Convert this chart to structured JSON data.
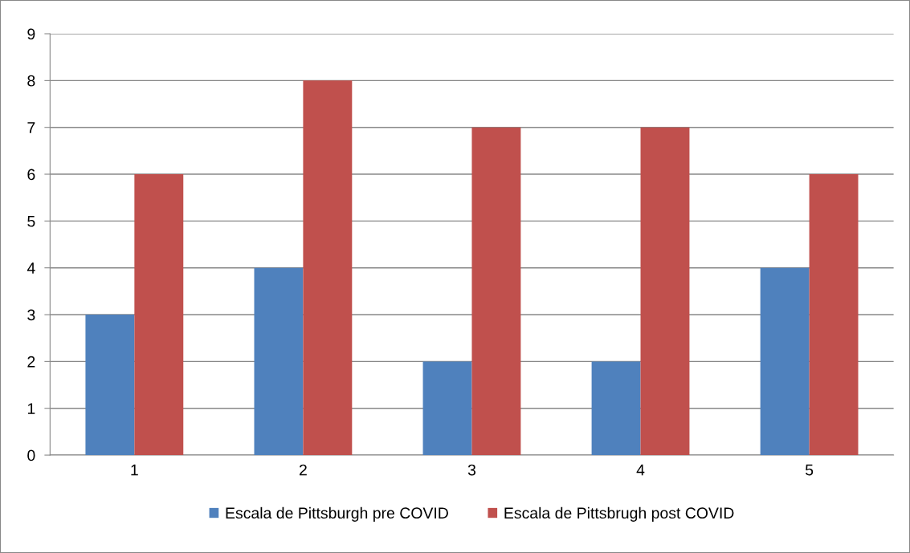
{
  "chart_data": {
    "type": "bar",
    "categories": [
      "1",
      "2",
      "3",
      "4",
      "5"
    ],
    "series": [
      {
        "name": "Escala de Pittsburgh pre COVID",
        "color": "#4f81bd",
        "values": [
          3,
          4,
          2,
          2,
          4
        ]
      },
      {
        "name": "Escala de Pittsbrugh post COVID",
        "color": "#c0504d",
        "values": [
          6,
          8,
          7,
          7,
          6
        ]
      }
    ],
    "ylim": [
      0,
      9
    ],
    "yticks": [
      0,
      1,
      2,
      3,
      4,
      5,
      6,
      7,
      8,
      9
    ],
    "grid": "y",
    "legend": "bottom"
  }
}
